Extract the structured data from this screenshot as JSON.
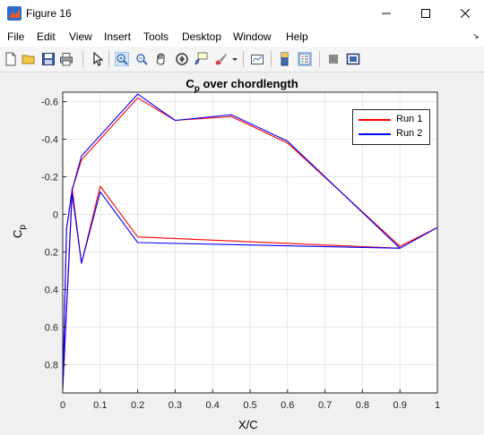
{
  "window": {
    "title": "Figure 16"
  },
  "menu": [
    "File",
    "Edit",
    "View",
    "Insert",
    "Tools",
    "Desktop",
    "Window",
    "Help"
  ],
  "toolbar": [
    "new-figure-icon",
    "open-folder-icon",
    "save-icon",
    "print-icon",
    "pointer-icon",
    "zoom-in-icon",
    "zoom-out-icon",
    "pan-icon",
    "rotate-3d-icon",
    "data-cursor-icon",
    "brush-icon",
    "link-plot-icon",
    "colorbar-icon",
    "legend-icon",
    "hide-plot-tools-icon",
    "show-plot-tools-icon"
  ],
  "colors": {
    "run1": "#ff0000",
    "run2": "#0000ff",
    "axes_bg": "#ffffff",
    "grid": "#e6e6e6"
  },
  "chart_data": {
    "type": "line",
    "title_main": "C",
    "title_sub": "p",
    "title_rest": " over chordlength",
    "xlabel": "X/C",
    "ylabel_main": "C",
    "ylabel_sub": "p",
    "xlim": [
      0,
      1
    ],
    "ylim": [
      -0.65,
      0.95
    ],
    "y_reversed": true,
    "grid": true,
    "legend_position": "top-right",
    "xticks": [
      0,
      0.1,
      0.2,
      0.3,
      0.4,
      0.5,
      0.6,
      0.7,
      0.8,
      0.9,
      1
    ],
    "xtick_labels": [
      "0",
      "0.1",
      "0.2",
      "0.3",
      "0.4",
      "0.5",
      "0.6",
      "0.7",
      "0.8",
      "0.9",
      "1"
    ],
    "yticks": [
      -0.6,
      -0.4,
      -0.2,
      0,
      0.2,
      0.4,
      0.6,
      0.8
    ],
    "ytick_labels": [
      "-0.6",
      "-0.4",
      "-0.2",
      "0",
      "0.2",
      "0.4",
      "0.6",
      "0.8"
    ],
    "series": [
      {
        "name": "Run 1",
        "color": "#ff0000",
        "x": [
          1,
          0.9,
          0.6,
          0.45,
          0.3,
          0.2,
          0.05,
          0.025,
          0.01,
          0,
          0.025,
          0.05,
          0.1,
          0.2,
          0.9,
          1
        ],
        "y": [
          0.07,
          0.17,
          -0.38,
          -0.52,
          -0.5,
          -0.62,
          -0.29,
          -0.13,
          0.08,
          0.93,
          -0.14,
          0.26,
          -0.15,
          0.12,
          0.18,
          0.07
        ]
      },
      {
        "name": "Run 2",
        "color": "#0000ff",
        "x": [
          1,
          0.9,
          0.6,
          0.45,
          0.3,
          0.2,
          0.05,
          0.025,
          0.01,
          0,
          0.025,
          0.05,
          0.1,
          0.2,
          0.9,
          1
        ],
        "y": [
          0.07,
          0.18,
          -0.39,
          -0.53,
          -0.5,
          -0.64,
          -0.31,
          -0.13,
          0.08,
          0.93,
          -0.11,
          0.26,
          -0.12,
          0.15,
          0.18,
          0.07
        ]
      }
    ]
  }
}
